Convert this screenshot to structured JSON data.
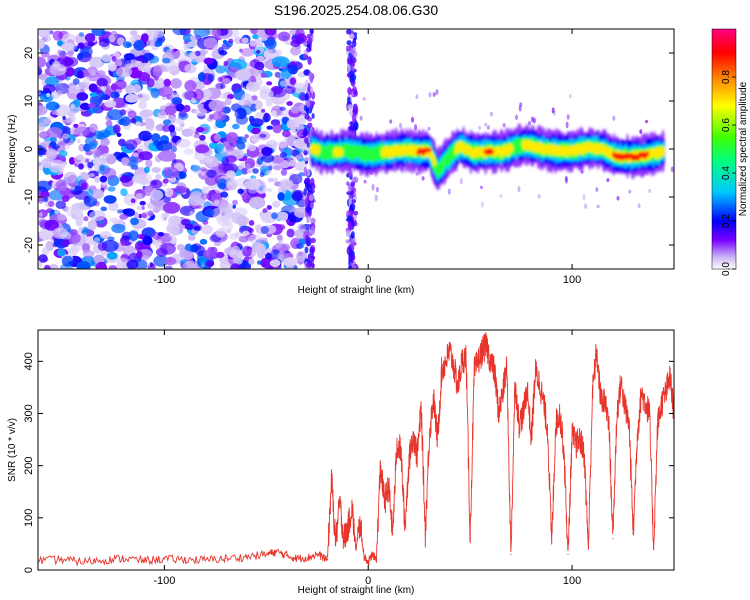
{
  "title": "S196.2025.254.08.06.G30",
  "colors": {
    "snr_line": "#e8352c",
    "background": "#ffffff",
    "axis": "#000000"
  },
  "chart_data": [
    {
      "type": "heatmap",
      "name": "spectrogram",
      "xlabel": "Height of straight line (km)",
      "ylabel": "Frequency (Hz)",
      "xlim": [
        -162,
        150
      ],
      "ylim": [
        -25,
        25
      ],
      "x_ticks": [
        -100,
        0,
        100
      ],
      "x_tick_labels": [
        "-100",
        "0",
        "100"
      ],
      "y_ticks": [
        -20,
        -10,
        0,
        10,
        20
      ],
      "y_tick_labels": [
        "-20",
        "-10",
        "0",
        "10",
        "20"
      ],
      "colorbar": {
        "label": "Normalized spectral amplitude",
        "range": [
          0,
          1
        ],
        "ticks": [
          0,
          0.2,
          0.4,
          0.6,
          0.8
        ],
        "tick_labels": [
          "0.0",
          "0.2",
          "0.4",
          "0.6",
          "0.8"
        ],
        "colormap": [
          "#ffffff",
          "#c8b4f5",
          "#7a00ff",
          "#0000ff",
          "#00c8ff",
          "#00ff80",
          "#40ff00",
          "#ffff00",
          "#ff8000",
          "#ff0000",
          "#ff0080"
        ]
      },
      "signal_track": [
        {
          "x": -28,
          "freq": 0.3,
          "amp": 0.85
        },
        {
          "x": -22,
          "freq": -0.8,
          "amp": 0.6
        },
        {
          "x": -14,
          "freq": -0.5,
          "amp": 0.75
        },
        {
          "x": -10,
          "freq": -0.3,
          "amp": 0.6
        },
        {
          "x": 0,
          "freq": -1.2,
          "amp": 0.5
        },
        {
          "x": 10,
          "freq": -0.6,
          "amp": 0.8
        },
        {
          "x": 18,
          "freq": -0.2,
          "amp": 0.75
        },
        {
          "x": 25,
          "freq": -0.5,
          "amp": 0.9
        },
        {
          "x": 30,
          "freq": -0.4,
          "amp": 0.9
        },
        {
          "x": 34,
          "freq": -4.5,
          "amp": 0.6
        },
        {
          "x": 40,
          "freq": -1.5,
          "amp": 0.55
        },
        {
          "x": 45,
          "freq": 0.5,
          "amp": 0.8
        },
        {
          "x": 52,
          "freq": -0.8,
          "amp": 0.7
        },
        {
          "x": 58,
          "freq": -0.6,
          "amp": 0.9
        },
        {
          "x": 66,
          "freq": -0.5,
          "amp": 0.85
        },
        {
          "x": 74,
          "freq": 0.6,
          "amp": 0.6
        },
        {
          "x": 78,
          "freq": 0.8,
          "amp": 0.8
        },
        {
          "x": 84,
          "freq": 0.2,
          "amp": 0.85
        },
        {
          "x": 92,
          "freq": -0.4,
          "amp": 0.85
        },
        {
          "x": 100,
          "freq": -0.4,
          "amp": 0.85
        },
        {
          "x": 108,
          "freq": 0.3,
          "amp": 0.75
        },
        {
          "x": 114,
          "freq": 0.0,
          "amp": 0.8
        },
        {
          "x": 122,
          "freq": -1.5,
          "amp": 0.9
        },
        {
          "x": 132,
          "freq": -1.6,
          "amp": 0.9
        },
        {
          "x": 145,
          "freq": -0.5,
          "amp": 0.85
        }
      ]
    },
    {
      "type": "line",
      "name": "snr",
      "xlabel": "Height of straight line (km)",
      "ylabel": "SNR (10 * v/v)",
      "xlim": [
        -162,
        150
      ],
      "ylim": [
        0,
        460
      ],
      "x_ticks": [
        -100,
        0,
        100
      ],
      "x_tick_labels": [
        "-100",
        "0",
        "100"
      ],
      "y_ticks": [
        0,
        100,
        200,
        300,
        400
      ],
      "y_tick_labels": [
        "0",
        "100",
        "200",
        "300",
        "400"
      ],
      "series": [
        {
          "name": "SNR",
          "x": [
            -162,
            -150,
            -140,
            -130,
            -120,
            -110,
            -100,
            -90,
            -80,
            -70,
            -60,
            -50,
            -45,
            -40,
            -35,
            -30,
            -25,
            -20,
            -18,
            -16,
            -14,
            -12,
            -10,
            -8,
            -6,
            -4,
            -2,
            0,
            2,
            4,
            6,
            8,
            10,
            12,
            14,
            16,
            18,
            20,
            22,
            24,
            26,
            28,
            30,
            32,
            34,
            36,
            38,
            40,
            42,
            44,
            46,
            48,
            50,
            52,
            54,
            56,
            58,
            60,
            62,
            64,
            66,
            68,
            70,
            72,
            74,
            76,
            78,
            80,
            82,
            84,
            86,
            88,
            90,
            92,
            94,
            96,
            98,
            100,
            102,
            104,
            106,
            108,
            110,
            112,
            114,
            116,
            118,
            120,
            122,
            124,
            126,
            128,
            130,
            132,
            134,
            136,
            138,
            140,
            142,
            144,
            146,
            148,
            150
          ],
          "values": [
            18,
            20,
            16,
            19,
            22,
            18,
            21,
            20,
            19,
            22,
            25,
            30,
            35,
            28,
            22,
            24,
            30,
            20,
            175,
            50,
            130,
            60,
            80,
            120,
            40,
            90,
            25,
            15,
            30,
            20,
            200,
            130,
            160,
            70,
            240,
            230,
            80,
            210,
            260,
            220,
            310,
            70,
            260,
            330,
            250,
            380,
            400,
            420,
            390,
            350,
            400,
            410,
            60,
            380,
            400,
            420,
            430,
            400,
            380,
            300,
            340,
            390,
            30,
            360,
            280,
            300,
            350,
            250,
            380,
            360,
            320,
            270,
            50,
            280,
            300,
            230,
            30,
            260,
            240,
            250,
            220,
            40,
            340,
            420,
            330,
            320,
            290,
            60,
            300,
            360,
            310,
            280,
            70,
            260,
            340,
            320,
            300,
            40,
            280,
            320,
            340,
            370,
            300
          ]
        }
      ]
    }
  ]
}
